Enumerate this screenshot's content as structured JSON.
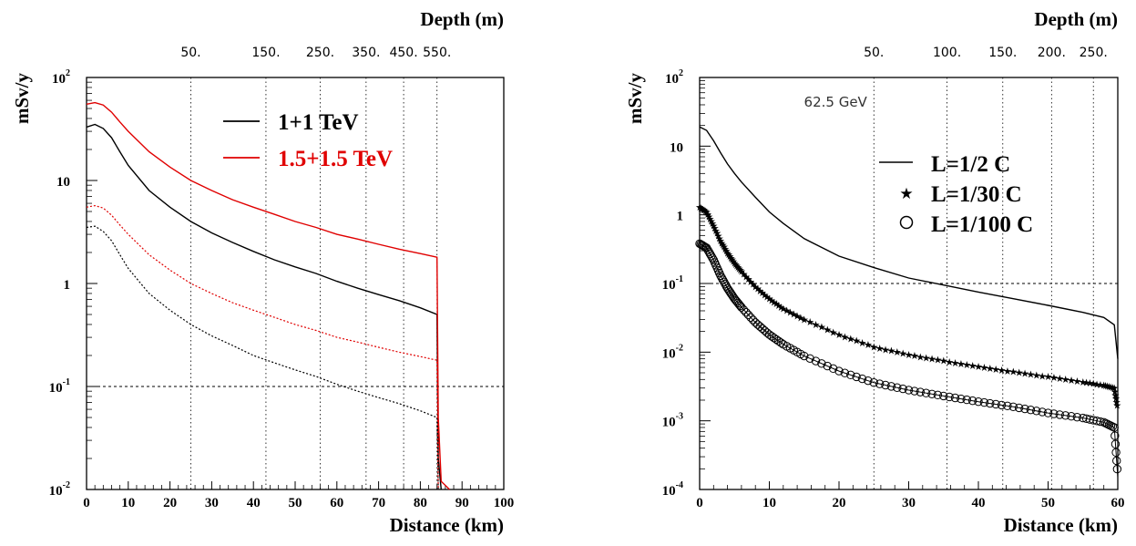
{
  "chart_data": [
    {
      "type": "line",
      "ylabel": "mSv/y",
      "xlabel": "Distance (km)",
      "top_axis_label": "Depth (m)",
      "top_ticks": [
        {
          "label": "50.",
          "x": 25
        },
        {
          "label": "150.",
          "x": 43
        },
        {
          "label": "250.",
          "x": 56
        },
        {
          "label": "350.",
          "x": 67
        },
        {
          "label": "450.",
          "x": 76
        },
        {
          "label": "550.",
          "x": 84
        }
      ],
      "xlim": [
        0,
        100
      ],
      "ylim": [
        0.01,
        100
      ],
      "yscale": "log",
      "x_ticks": [
        "0",
        "10",
        "20",
        "30",
        "40",
        "50",
        "60",
        "70",
        "80",
        "90",
        "100"
      ],
      "y_ticks": [
        {
          "value": 100,
          "base": "10",
          "exp": "2"
        },
        {
          "value": 10,
          "base": "10",
          "exp": ""
        },
        {
          "value": 1,
          "base": "1",
          "exp": ""
        },
        {
          "value": 0.1,
          "base": "10",
          "exp": "-1"
        },
        {
          "value": 0.01,
          "base": "10",
          "exp": "-2"
        }
      ],
      "vertical_dotted_x": [
        25,
        43,
        56,
        67,
        76,
        84
      ],
      "horizontal_dotted_y": 0.1,
      "legend": [
        {
          "label": "1+1 TeV",
          "color": "#000000"
        },
        {
          "label": "1.5+1.5 TeV",
          "color": "#e00000"
        }
      ],
      "series": [
        {
          "name": "1+1 TeV",
          "style": "solid",
          "color": "#000000",
          "x": [
            0,
            2,
            4,
            6,
            8,
            10,
            15,
            20,
            25,
            30,
            35,
            40,
            45,
            50,
            55,
            60,
            65,
            70,
            75,
            80,
            84,
            84.3,
            85
          ],
          "y": [
            33,
            35,
            32,
            26,
            19,
            14,
            8,
            5.5,
            4.0,
            3.1,
            2.5,
            2.05,
            1.7,
            1.45,
            1.25,
            1.05,
            0.9,
            0.78,
            0.68,
            0.58,
            0.5,
            0.02,
            0.01
          ]
        },
        {
          "name": "1.5+1.5 TeV",
          "style": "solid",
          "color": "#e00000",
          "x": [
            0,
            2,
            4,
            6,
            8,
            10,
            15,
            20,
            25,
            30,
            35,
            40,
            45,
            50,
            55,
            60,
            65,
            70,
            75,
            80,
            84,
            84.3,
            85,
            87
          ],
          "y": [
            55,
            57,
            54,
            46,
            37,
            30,
            19,
            13.5,
            10,
            8.0,
            6.5,
            5.5,
            4.7,
            4.0,
            3.5,
            3.0,
            2.7,
            2.4,
            2.15,
            1.95,
            1.8,
            0.05,
            0.012,
            0.01
          ]
        },
        {
          "name": "1+1 TeV dotted",
          "style": "dotted",
          "color": "#000000",
          "x": [
            0,
            2,
            4,
            6,
            8,
            10,
            15,
            20,
            25,
            30,
            35,
            40,
            45,
            50,
            55,
            60,
            65,
            70,
            75,
            80,
            84,
            84.3
          ],
          "y": [
            3.5,
            3.6,
            3.2,
            2.6,
            1.9,
            1.4,
            0.8,
            0.55,
            0.4,
            0.31,
            0.25,
            0.2,
            0.17,
            0.145,
            0.125,
            0.105,
            0.09,
            0.078,
            0.068,
            0.058,
            0.05,
            0.01
          ]
        },
        {
          "name": "1.5+1.5 TeV dotted",
          "style": "dotted",
          "color": "#e00000",
          "x": [
            0,
            2,
            4,
            6,
            8,
            10,
            15,
            20,
            25,
            30,
            35,
            40,
            45,
            50,
            55,
            60,
            65,
            70,
            75,
            80,
            84,
            84.3
          ],
          "y": [
            5.5,
            5.7,
            5.4,
            4.6,
            3.7,
            3.0,
            1.9,
            1.35,
            1.0,
            0.8,
            0.65,
            0.55,
            0.47,
            0.4,
            0.35,
            0.3,
            0.27,
            0.24,
            0.215,
            0.195,
            0.18,
            0.01
          ]
        }
      ]
    },
    {
      "type": "line",
      "ylabel": "mSv/y",
      "xlabel": "Distance (km)",
      "top_axis_label": "Depth (m)",
      "annotation": "62.5 GeV",
      "top_ticks": [
        {
          "label": "50.",
          "x": 25
        },
        {
          "label": "100.",
          "x": 35.5
        },
        {
          "label": "150.",
          "x": 43.5
        },
        {
          "label": "200.",
          "x": 50.5
        },
        {
          "label": "250.",
          "x": 56.5
        }
      ],
      "xlim": [
        0,
        60
      ],
      "ylim": [
        0.0001,
        100
      ],
      "yscale": "log",
      "x_ticks": [
        "0",
        "10",
        "20",
        "30",
        "40",
        "50",
        "60"
      ],
      "y_ticks": [
        {
          "value": 100,
          "base": "10",
          "exp": "2"
        },
        {
          "value": 10,
          "base": "10",
          "exp": ""
        },
        {
          "value": 1,
          "base": "1",
          "exp": ""
        },
        {
          "value": 0.1,
          "base": "10",
          "exp": "-1"
        },
        {
          "value": 0.01,
          "base": "10",
          "exp": "-2"
        },
        {
          "value": 0.001,
          "base": "10",
          "exp": "-3"
        },
        {
          "value": 0.0001,
          "base": "10",
          "exp": "-4"
        }
      ],
      "vertical_dotted_x": [
        25,
        35.5,
        43.5,
        50.5,
        56.5
      ],
      "horizontal_dotted_y": 0.1,
      "legend": [
        {
          "label": "L=1/2 C",
          "marker": "line"
        },
        {
          "label": "L=1/30 C",
          "marker": "star"
        },
        {
          "label": "L=1/100 C",
          "marker": "circle"
        }
      ],
      "series": [
        {
          "name": "L=1/2 C",
          "marker": "line",
          "x": [
            0,
            1,
            2,
            3,
            4,
            5,
            6,
            8,
            10,
            12,
            15,
            20,
            25,
            30,
            35,
            40,
            45,
            50,
            55,
            58,
            59.5,
            60
          ],
          "y": [
            19,
            17,
            12,
            8,
            5.5,
            4.0,
            3.0,
            1.8,
            1.1,
            0.75,
            0.45,
            0.25,
            0.17,
            0.12,
            0.095,
            0.075,
            0.06,
            0.048,
            0.038,
            0.032,
            0.025,
            0.008
          ]
        },
        {
          "name": "L=1/30 C",
          "marker": "star",
          "x": [
            0,
            1,
            2,
            3,
            4,
            5,
            6,
            8,
            10,
            12,
            15,
            20,
            25,
            30,
            35,
            40,
            45,
            50,
            55,
            58,
            59.5,
            60
          ],
          "y": [
            1.3,
            1.1,
            0.7,
            0.42,
            0.28,
            0.2,
            0.15,
            0.09,
            0.06,
            0.043,
            0.03,
            0.018,
            0.012,
            0.0092,
            0.0075,
            0.0062,
            0.0052,
            0.0044,
            0.0037,
            0.0033,
            0.003,
            0.0015
          ]
        },
        {
          "name": "L=1/100 C",
          "marker": "circle",
          "x": [
            0,
            1,
            2,
            3,
            4,
            5,
            6,
            8,
            10,
            12,
            15,
            20,
            25,
            30,
            35,
            40,
            45,
            50,
            55,
            58,
            59.5,
            60
          ],
          "y": [
            0.38,
            0.33,
            0.22,
            0.13,
            0.085,
            0.06,
            0.045,
            0.027,
            0.018,
            0.013,
            0.0088,
            0.0053,
            0.0036,
            0.0028,
            0.0023,
            0.0019,
            0.0016,
            0.0013,
            0.0011,
            0.00095,
            0.0008,
            0.00015
          ]
        }
      ]
    }
  ]
}
